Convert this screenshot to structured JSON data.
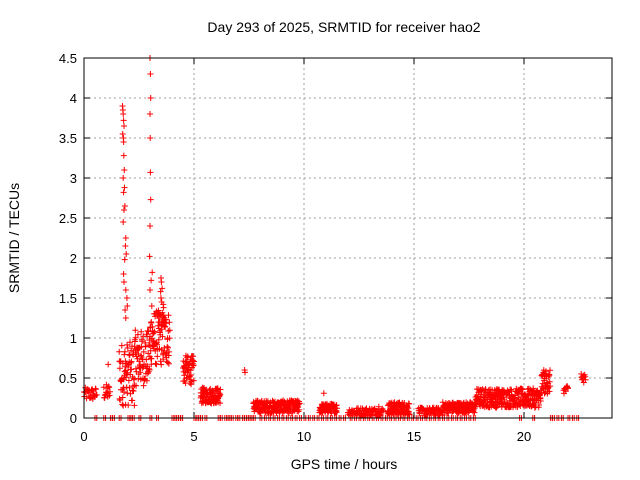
{
  "chart_data": {
    "type": "scatter",
    "title": "Day 293 of 2025, SRMTID for receiver hao2",
    "xlabel": "GPS time / hours",
    "ylabel": "SRMTID / TECUs",
    "xlim": [
      0,
      24
    ],
    "ylim": [
      0,
      4.5
    ],
    "xticks": [
      0,
      5,
      10,
      15,
      20
    ],
    "xtick_labels": [
      "0",
      "5",
      "10",
      "15",
      "20"
    ],
    "yticks": [
      0,
      0.5,
      1,
      1.5,
      2,
      2.5,
      3,
      3.5,
      4,
      4.5
    ],
    "ytick_labels": [
      "0",
      "0.5",
      "1",
      "1.5",
      "2",
      "2.5",
      "3",
      "3.5",
      "4",
      "4.5"
    ],
    "grid": true,
    "marker": "plus",
    "color": "#ff0000",
    "series": [
      {
        "name": "SRMTID",
        "segments": [
          {
            "x0": 0.0,
            "x1": 0.6,
            "base": 0.3,
            "amp": 0.08,
            "step": 0.02
          },
          {
            "x0": 0.9,
            "x1": 1.2,
            "base": 0.32,
            "amp": 0.1,
            "step": 0.02
          },
          {
            "x0": 1.6,
            "x1": 2.3,
            "base": 0.55,
            "amp": 0.4,
            "step": 0.01
          },
          {
            "x0": 2.3,
            "x1": 3.0,
            "base": 0.75,
            "amp": 0.35,
            "step": 0.01
          },
          {
            "x0": 3.0,
            "x1": 3.9,
            "base": 1.0,
            "amp": 0.35,
            "step": 0.01
          },
          {
            "x0": 4.5,
            "x1": 5.0,
            "base": 0.6,
            "amp": 0.18,
            "step": 0.01
          },
          {
            "x0": 5.3,
            "x1": 6.2,
            "base": 0.28,
            "amp": 0.1,
            "step": 0.01
          },
          {
            "x0": 7.7,
            "x1": 9.8,
            "base": 0.14,
            "amp": 0.08,
            "step": 0.01
          },
          {
            "x0": 10.7,
            "x1": 11.5,
            "base": 0.12,
            "amp": 0.06,
            "step": 0.01
          },
          {
            "x0": 12.0,
            "x1": 13.6,
            "base": 0.08,
            "amp": 0.05,
            "step": 0.02
          },
          {
            "x0": 13.8,
            "x1": 14.8,
            "base": 0.12,
            "amp": 0.08,
            "step": 0.01
          },
          {
            "x0": 15.2,
            "x1": 16.3,
            "base": 0.08,
            "amp": 0.05,
            "step": 0.02
          },
          {
            "x0": 16.3,
            "x1": 17.8,
            "base": 0.13,
            "amp": 0.07,
            "step": 0.01
          },
          {
            "x0": 17.8,
            "x1": 20.8,
            "base": 0.25,
            "amp": 0.12,
            "step": 0.01
          },
          {
            "x0": 20.8,
            "x1": 21.2,
            "base": 0.45,
            "amp": 0.15,
            "step": 0.01
          },
          {
            "x0": 21.8,
            "x1": 22.0,
            "base": 0.35,
            "amp": 0.05,
            "step": 0.02
          },
          {
            "x0": 22.6,
            "x1": 22.8,
            "base": 0.5,
            "amp": 0.12,
            "step": 0.02
          }
        ],
        "extra_points": [
          [
            1.75,
            3.9
          ],
          [
            1.77,
            3.85
          ],
          [
            1.78,
            3.8
          ],
          [
            1.8,
            3.72
          ],
          [
            1.82,
            3.65
          ],
          [
            1.76,
            3.55
          ],
          [
            1.79,
            3.5
          ],
          [
            1.8,
            3.45
          ],
          [
            1.81,
            3.28
          ],
          [
            1.83,
            3.1
          ],
          [
            1.78,
            3.0
          ],
          [
            1.84,
            2.88
          ],
          [
            1.8,
            2.82
          ],
          [
            1.86,
            2.65
          ],
          [
            1.82,
            2.6
          ],
          [
            1.78,
            2.45
          ],
          [
            1.9,
            2.25
          ],
          [
            1.88,
            2.15
          ],
          [
            1.92,
            2.05
          ],
          [
            1.85,
            1.98
          ],
          [
            1.8,
            1.8
          ],
          [
            1.82,
            1.7
          ],
          [
            1.9,
            1.6
          ],
          [
            1.95,
            1.5
          ],
          [
            1.97,
            1.4
          ],
          [
            1.87,
            1.35
          ],
          [
            1.9,
            1.25
          ],
          [
            3.0,
            4.5
          ],
          [
            3.02,
            4.3
          ],
          [
            3.03,
            4.0
          ],
          [
            3.0,
            3.8
          ],
          [
            3.01,
            3.5
          ],
          [
            3.02,
            3.07
          ],
          [
            3.03,
            2.73
          ],
          [
            3.0,
            2.4
          ],
          [
            2.98,
            2.02
          ],
          [
            3.1,
            1.82
          ],
          [
            3.05,
            1.72
          ],
          [
            3.0,
            1.6
          ],
          [
            3.08,
            1.4
          ],
          [
            3.06,
            1.2
          ],
          [
            3.5,
            1.75
          ],
          [
            3.52,
            1.7
          ],
          [
            3.55,
            1.62
          ],
          [
            3.48,
            1.58
          ],
          [
            3.5,
            1.5
          ],
          [
            3.53,
            1.45
          ],
          [
            3.6,
            1.42
          ],
          [
            3.62,
            1.38
          ],
          [
            3.45,
            1.3
          ],
          [
            3.4,
            1.25
          ],
          [
            3.58,
            1.2
          ],
          [
            3.65,
            1.15
          ],
          [
            1.1,
            0.67
          ],
          [
            7.3,
            0.6
          ],
          [
            7.32,
            0.57
          ],
          [
            10.9,
            0.31
          ],
          [
            13.4,
            0.14
          ],
          [
            15.9,
            0.13
          ]
        ],
        "zero_points": [
          0.5,
          0.9,
          1.2,
          1.3,
          1.6,
          2.0,
          2.1,
          2.2,
          2.5,
          3.0,
          3.3,
          4.0,
          4.1,
          4.2,
          4.3,
          4.4,
          5.0,
          5.1,
          5.2,
          5.3,
          5.5,
          6.1,
          6.2,
          6.4,
          6.5,
          6.6,
          6.7,
          6.9,
          7.0,
          7.2,
          7.3,
          7.4,
          7.5,
          7.6,
          7.7,
          8.0,
          8.2,
          8.4,
          8.6,
          8.8,
          9.0,
          9.2,
          9.4,
          9.6,
          9.8,
          10.0,
          10.2,
          10.4,
          10.6,
          10.8,
          11.0,
          11.2,
          11.4,
          11.6,
          11.8,
          12.1,
          12.3,
          12.5,
          12.7,
          12.9,
          13.1,
          13.3,
          13.5,
          13.7,
          13.9,
          14.1,
          14.3,
          14.5,
          14.7,
          14.9,
          15.1,
          15.3,
          15.5,
          15.7,
          15.9,
          16.1,
          16.3,
          16.5,
          16.7,
          16.9,
          17.1,
          17.3,
          17.5,
          17.7,
          19.8,
          20.4,
          21.2,
          21.3,
          21.5,
          21.7,
          22.0,
          22.2,
          22.4
        ]
      }
    ]
  }
}
